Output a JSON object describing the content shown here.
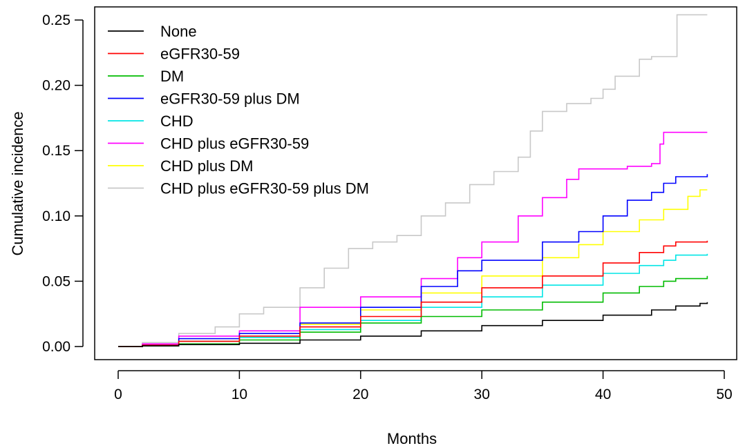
{
  "chart_data": {
    "type": "line",
    "title": "",
    "xlabel": "Months",
    "ylabel": "Cumulative incidence",
    "xlim": [
      0,
      50
    ],
    "ylim": [
      0,
      0.25
    ],
    "x_ticks": [
      0,
      10,
      20,
      30,
      40,
      50
    ],
    "x_tick_labels": [
      "0",
      "10",
      "20",
      "30",
      "40",
      "50"
    ],
    "y_ticks": [
      0,
      0.05,
      0.1,
      0.15,
      0.2,
      0.25
    ],
    "y_tick_labels": [
      "0.00",
      "0.05",
      "0.10",
      "0.15",
      "0.20",
      "0.25"
    ],
    "grid": false,
    "legend_position": "top-left",
    "series": [
      {
        "name": "None",
        "color": "#000000",
        "points": [
          [
            0,
            0
          ],
          [
            2,
            0.0005
          ],
          [
            5,
            0.0015
          ],
          [
            10,
            0.0025
          ],
          [
            15,
            0.005
          ],
          [
            20,
            0.008
          ],
          [
            25,
            0.012
          ],
          [
            30,
            0.016
          ],
          [
            35,
            0.02
          ],
          [
            40,
            0.024
          ],
          [
            44,
            0.028
          ],
          [
            46,
            0.031
          ],
          [
            48,
            0.033
          ],
          [
            48.6,
            0.034
          ]
        ]
      },
      {
        "name": "eGFR30-59",
        "color": "#ff0000",
        "points": [
          [
            0,
            0
          ],
          [
            2,
            0.001
          ],
          [
            5,
            0.004
          ],
          [
            10,
            0.008
          ],
          [
            15,
            0.015
          ],
          [
            20,
            0.023
          ],
          [
            25,
            0.034
          ],
          [
            30,
            0.045
          ],
          [
            35,
            0.054
          ],
          [
            40,
            0.064
          ],
          [
            43,
            0.072
          ],
          [
            45,
            0.077
          ],
          [
            46,
            0.08
          ],
          [
            48.6,
            0.081
          ]
        ]
      },
      {
        "name": "DM",
        "color": "#00bb00",
        "points": [
          [
            0,
            0
          ],
          [
            2,
            0.0005
          ],
          [
            5,
            0.002
          ],
          [
            10,
            0.005
          ],
          [
            15,
            0.011
          ],
          [
            20,
            0.018
          ],
          [
            25,
            0.023
          ],
          [
            30,
            0.028
          ],
          [
            35,
            0.034
          ],
          [
            40,
            0.041
          ],
          [
            43,
            0.046
          ],
          [
            45,
            0.05
          ],
          [
            46,
            0.052
          ],
          [
            48.6,
            0.054
          ]
        ]
      },
      {
        "name": "eGFR30-59 plus DM",
        "color": "#0000ff",
        "points": [
          [
            0,
            0
          ],
          [
            2,
            0.001
          ],
          [
            5,
            0.006
          ],
          [
            10,
            0.01
          ],
          [
            15,
            0.018
          ],
          [
            20,
            0.03
          ],
          [
            25,
            0.046
          ],
          [
            28,
            0.058
          ],
          [
            30,
            0.066
          ],
          [
            35,
            0.08
          ],
          [
            38,
            0.088
          ],
          [
            40,
            0.1
          ],
          [
            42,
            0.112
          ],
          [
            44,
            0.118
          ],
          [
            45,
            0.125
          ],
          [
            46,
            0.13
          ],
          [
            48.6,
            0.132
          ]
        ]
      },
      {
        "name": "CHD",
        "color": "#00e5e5",
        "points": [
          [
            0,
            0
          ],
          [
            2,
            0.001
          ],
          [
            5,
            0.004
          ],
          [
            10,
            0.007
          ],
          [
            15,
            0.013
          ],
          [
            20,
            0.02
          ],
          [
            25,
            0.03
          ],
          [
            30,
            0.038
          ],
          [
            35,
            0.047
          ],
          [
            40,
            0.056
          ],
          [
            43,
            0.062
          ],
          [
            45,
            0.066
          ],
          [
            46,
            0.07
          ],
          [
            48.6,
            0.071
          ]
        ]
      },
      {
        "name": "CHD plus eGFR30-59",
        "color": "#ff00ff",
        "points": [
          [
            0,
            0
          ],
          [
            2,
            0.002
          ],
          [
            5,
            0.008
          ],
          [
            10,
            0.012
          ],
          [
            15,
            0.03
          ],
          [
            20,
            0.038
          ],
          [
            25,
            0.052
          ],
          [
            28,
            0.068
          ],
          [
            30,
            0.08
          ],
          [
            33,
            0.1
          ],
          [
            35,
            0.114
          ],
          [
            37,
            0.128
          ],
          [
            38,
            0.136
          ],
          [
            42,
            0.138
          ],
          [
            44,
            0.14
          ],
          [
            44.7,
            0.155
          ],
          [
            45,
            0.164
          ],
          [
            48.6,
            0.164
          ]
        ]
      },
      {
        "name": "CHD plus DM",
        "color": "#ffff00",
        "points": [
          [
            0,
            0
          ],
          [
            2,
            0.001
          ],
          [
            5,
            0.004
          ],
          [
            10,
            0.007
          ],
          [
            15,
            0.017
          ],
          [
            20,
            0.028
          ],
          [
            25,
            0.041
          ],
          [
            30,
            0.054
          ],
          [
            35,
            0.068
          ],
          [
            38,
            0.078
          ],
          [
            40,
            0.088
          ],
          [
            43,
            0.097
          ],
          [
            45,
            0.105
          ],
          [
            47,
            0.115
          ],
          [
            48,
            0.12
          ],
          [
            48.6,
            0.12
          ]
        ]
      },
      {
        "name": "CHD plus eGFR30-59 plus DM",
        "color": "#c8c8c8",
        "points": [
          [
            0,
            0
          ],
          [
            2,
            0.003
          ],
          [
            5,
            0.01
          ],
          [
            8,
            0.015
          ],
          [
            10,
            0.025
          ],
          [
            12,
            0.03
          ],
          [
            15,
            0.045
          ],
          [
            17,
            0.06
          ],
          [
            19,
            0.075
          ],
          [
            21,
            0.08
          ],
          [
            23,
            0.085
          ],
          [
            25,
            0.1
          ],
          [
            27,
            0.11
          ],
          [
            29,
            0.124
          ],
          [
            31,
            0.134
          ],
          [
            33,
            0.145
          ],
          [
            34,
            0.165
          ],
          [
            35,
            0.18
          ],
          [
            37,
            0.186
          ],
          [
            39,
            0.19
          ],
          [
            40,
            0.197
          ],
          [
            41,
            0.207
          ],
          [
            43,
            0.22
          ],
          [
            44,
            0.222
          ],
          [
            45,
            0.222
          ],
          [
            46,
            0.222
          ],
          [
            46.1,
            0.254
          ],
          [
            48.6,
            0.254
          ]
        ]
      }
    ]
  }
}
